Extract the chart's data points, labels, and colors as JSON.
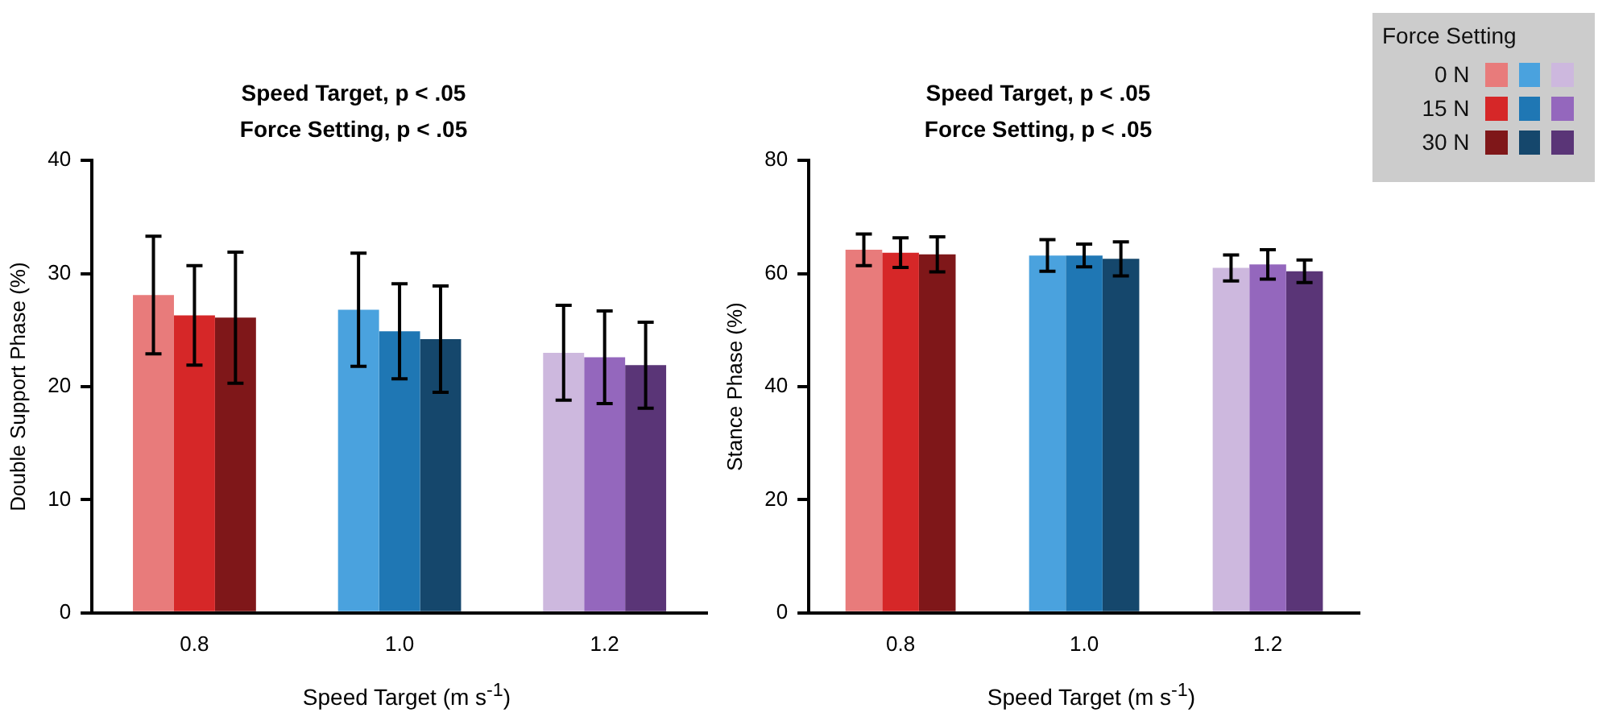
{
  "chart_data": [
    {
      "type": "bar",
      "title": "Speed Target, p < .05",
      "subtitle": "Force Setting, p < .05",
      "xlabel": "Speed Target (m s$^{-1}$)",
      "ylabel": "Double Support Phase (%)",
      "categories": [
        "0.8",
        "1.0",
        "1.2"
      ],
      "ylim": [
        0,
        40
      ],
      "yticks": [
        0,
        10,
        20,
        30,
        40
      ],
      "grid": false,
      "legend": "top right",
      "legend_title": "Force Setting",
      "series": [
        {
          "name": "0 N",
          "colors": [
            "#e87b7b",
            "#4aa2de",
            "#cdb8de"
          ],
          "values": [
            28.1,
            26.8,
            23.0
          ],
          "errors": [
            5.2,
            5.0,
            4.2
          ]
        },
        {
          "name": "15 N",
          "colors": [
            "#d62728",
            "#1f77b4",
            "#9467bd"
          ],
          "values": [
            26.3,
            24.9,
            22.6
          ],
          "errors": [
            4.4,
            4.2,
            4.1
          ]
        },
        {
          "name": "30 N",
          "colors": [
            "#7f1719",
            "#15476c",
            "#5a3577"
          ],
          "values": [
            26.1,
            24.2,
            21.9
          ],
          "errors": [
            5.8,
            4.7,
            3.8
          ]
        }
      ]
    },
    {
      "type": "bar",
      "title": "Speed Target, p < .05",
      "subtitle": "Force Setting, p < .05",
      "xlabel": "Speed Target (m s$^{-1}$)",
      "ylabel": "Stance Phase (%)",
      "categories": [
        "0.8",
        "1.0",
        "1.2"
      ],
      "ylim": [
        0,
        80
      ],
      "yticks": [
        0,
        20,
        40,
        60,
        80
      ],
      "grid": false,
      "series": [
        {
          "colors": [
            "#e87b7b",
            "#4aa2de",
            "#cdb8de"
          ],
          "values": [
            64.2,
            63.2,
            61.0
          ],
          "errors": [
            2.8,
            2.8,
            2.3
          ]
        },
        {
          "colors": [
            "#d62728",
            "#1f77b4",
            "#9467bd"
          ],
          "values": [
            63.7,
            63.2,
            61.6
          ],
          "errors": [
            2.6,
            2.0,
            2.6
          ]
        },
        {
          "colors": [
            "#7f1719",
            "#15476c",
            "#5a3577"
          ],
          "values": [
            63.4,
            62.6,
            60.4
          ],
          "errors": [
            3.1,
            3.0,
            2.0
          ]
        }
      ]
    }
  ]
}
